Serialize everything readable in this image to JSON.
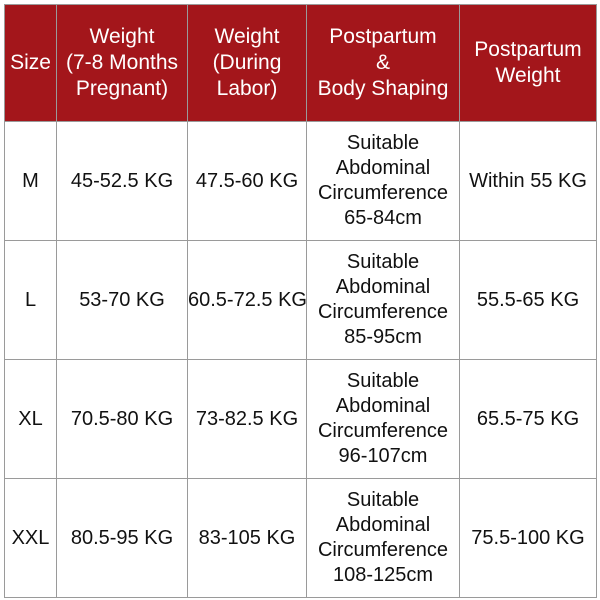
{
  "table": {
    "header": [
      [
        "Size"
      ],
      [
        "Weight",
        "(7-8 Months",
        "Pregnant)"
      ],
      [
        "Weight",
        "(During",
        "Labor)"
      ],
      [
        "Postpartum",
        "&",
        "Body Shaping"
      ],
      [
        "Postpartum",
        "Weight"
      ]
    ],
    "rows": [
      [
        [
          "M"
        ],
        [
          "45-52.5 KG"
        ],
        [
          "47.5-60 KG"
        ],
        [
          "Suitable",
          "Abdominal",
          "Circumference",
          "65-84cm"
        ],
        [
          "Within 55 KG"
        ]
      ],
      [
        [
          "L"
        ],
        [
          "53-70 KG"
        ],
        [
          "60.5-72.5 KG"
        ],
        [
          "Suitable",
          "Abdominal",
          "Circumference",
          "85-95cm"
        ],
        [
          "55.5-65 KG"
        ]
      ],
      [
        [
          "XL"
        ],
        [
          "70.5-80 KG"
        ],
        [
          "73-82.5 KG"
        ],
        [
          "Suitable",
          "Abdominal",
          "Circumference",
          "96-107cm"
        ],
        [
          "65.5-75 KG"
        ]
      ],
      [
        [
          "XXL"
        ],
        [
          "80.5-95 KG"
        ],
        [
          "83-105 KG"
        ],
        [
          "Suitable",
          "Abdominal",
          "Circumference",
          "108-125cm"
        ],
        [
          "75.5-100 KG"
        ]
      ]
    ]
  }
}
